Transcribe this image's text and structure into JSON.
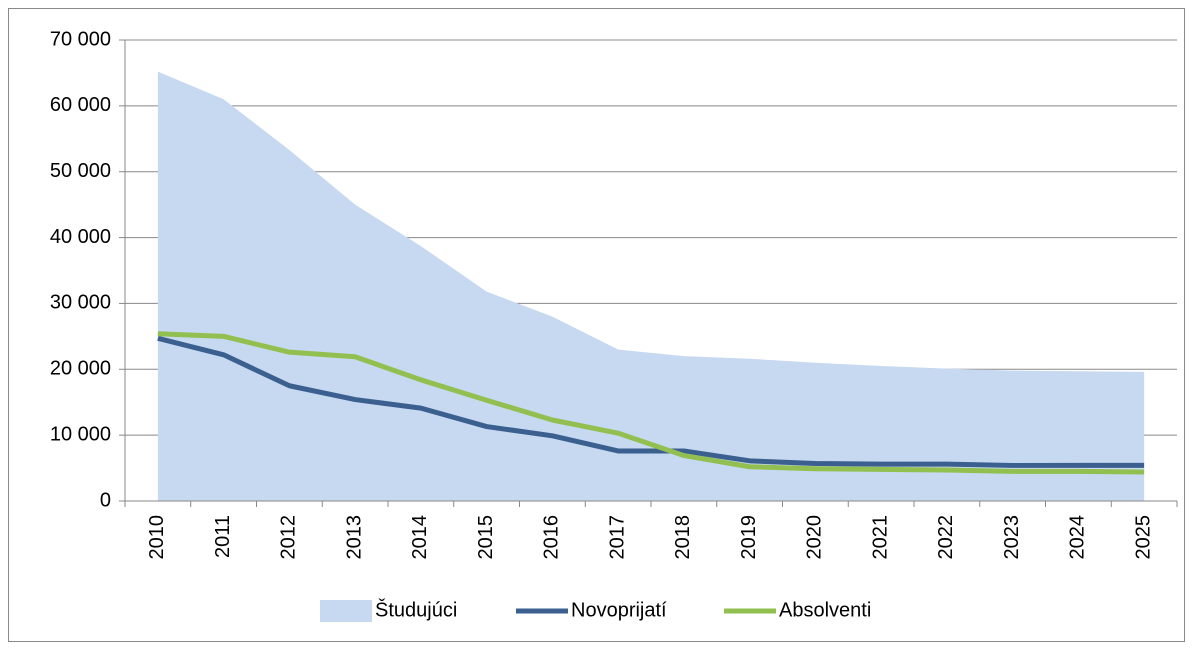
{
  "chart_data": {
    "type": "line",
    "categories": [
      "2010",
      "2011",
      "2012",
      "2013",
      "2014",
      "2015",
      "2016",
      "2017",
      "2018",
      "2019",
      "2020",
      "2021",
      "2022",
      "2023",
      "2024",
      "2025"
    ],
    "series": [
      {
        "name": "Študujúci",
        "type": "area",
        "color": "#c6d9f1",
        "values": [
          65200,
          61000,
          53300,
          45000,
          38700,
          31800,
          28000,
          23000,
          22000,
          21600,
          21000,
          20500,
          20100,
          19800,
          19700,
          19600
        ]
      },
      {
        "name": "Novoprijatí",
        "type": "line",
        "color": "#3b5f8e",
        "values": [
          24700,
          22200,
          17500,
          15400,
          14100,
          11300,
          9900,
          7600,
          7600,
          6100,
          5700,
          5600,
          5600,
          5400,
          5400,
          5400
        ]
      },
      {
        "name": "Absolventi",
        "type": "line",
        "color": "#92c050",
        "values": [
          25400,
          25000,
          22600,
          21900,
          18400,
          15300,
          12300,
          10300,
          6900,
          5200,
          4900,
          4800,
          4700,
          4500,
          4500,
          4400
        ]
      }
    ],
    "ylim": [
      0,
      70000
    ],
    "yticks": [
      0,
      {
        "value": 10000,
        "label": "10 000"
      },
      {
        "value": 20000,
        "label": "20 000"
      },
      {
        "value": 30000,
        "label": "30 000"
      },
      {
        "value": 40000,
        "label": "40 000"
      },
      {
        "value": 50000,
        "label": "50 000"
      },
      {
        "value": 60000,
        "label": "60 000"
      },
      {
        "value": 70000,
        "label": "70 000"
      }
    ],
    "grid": true,
    "legend": "bottom"
  }
}
